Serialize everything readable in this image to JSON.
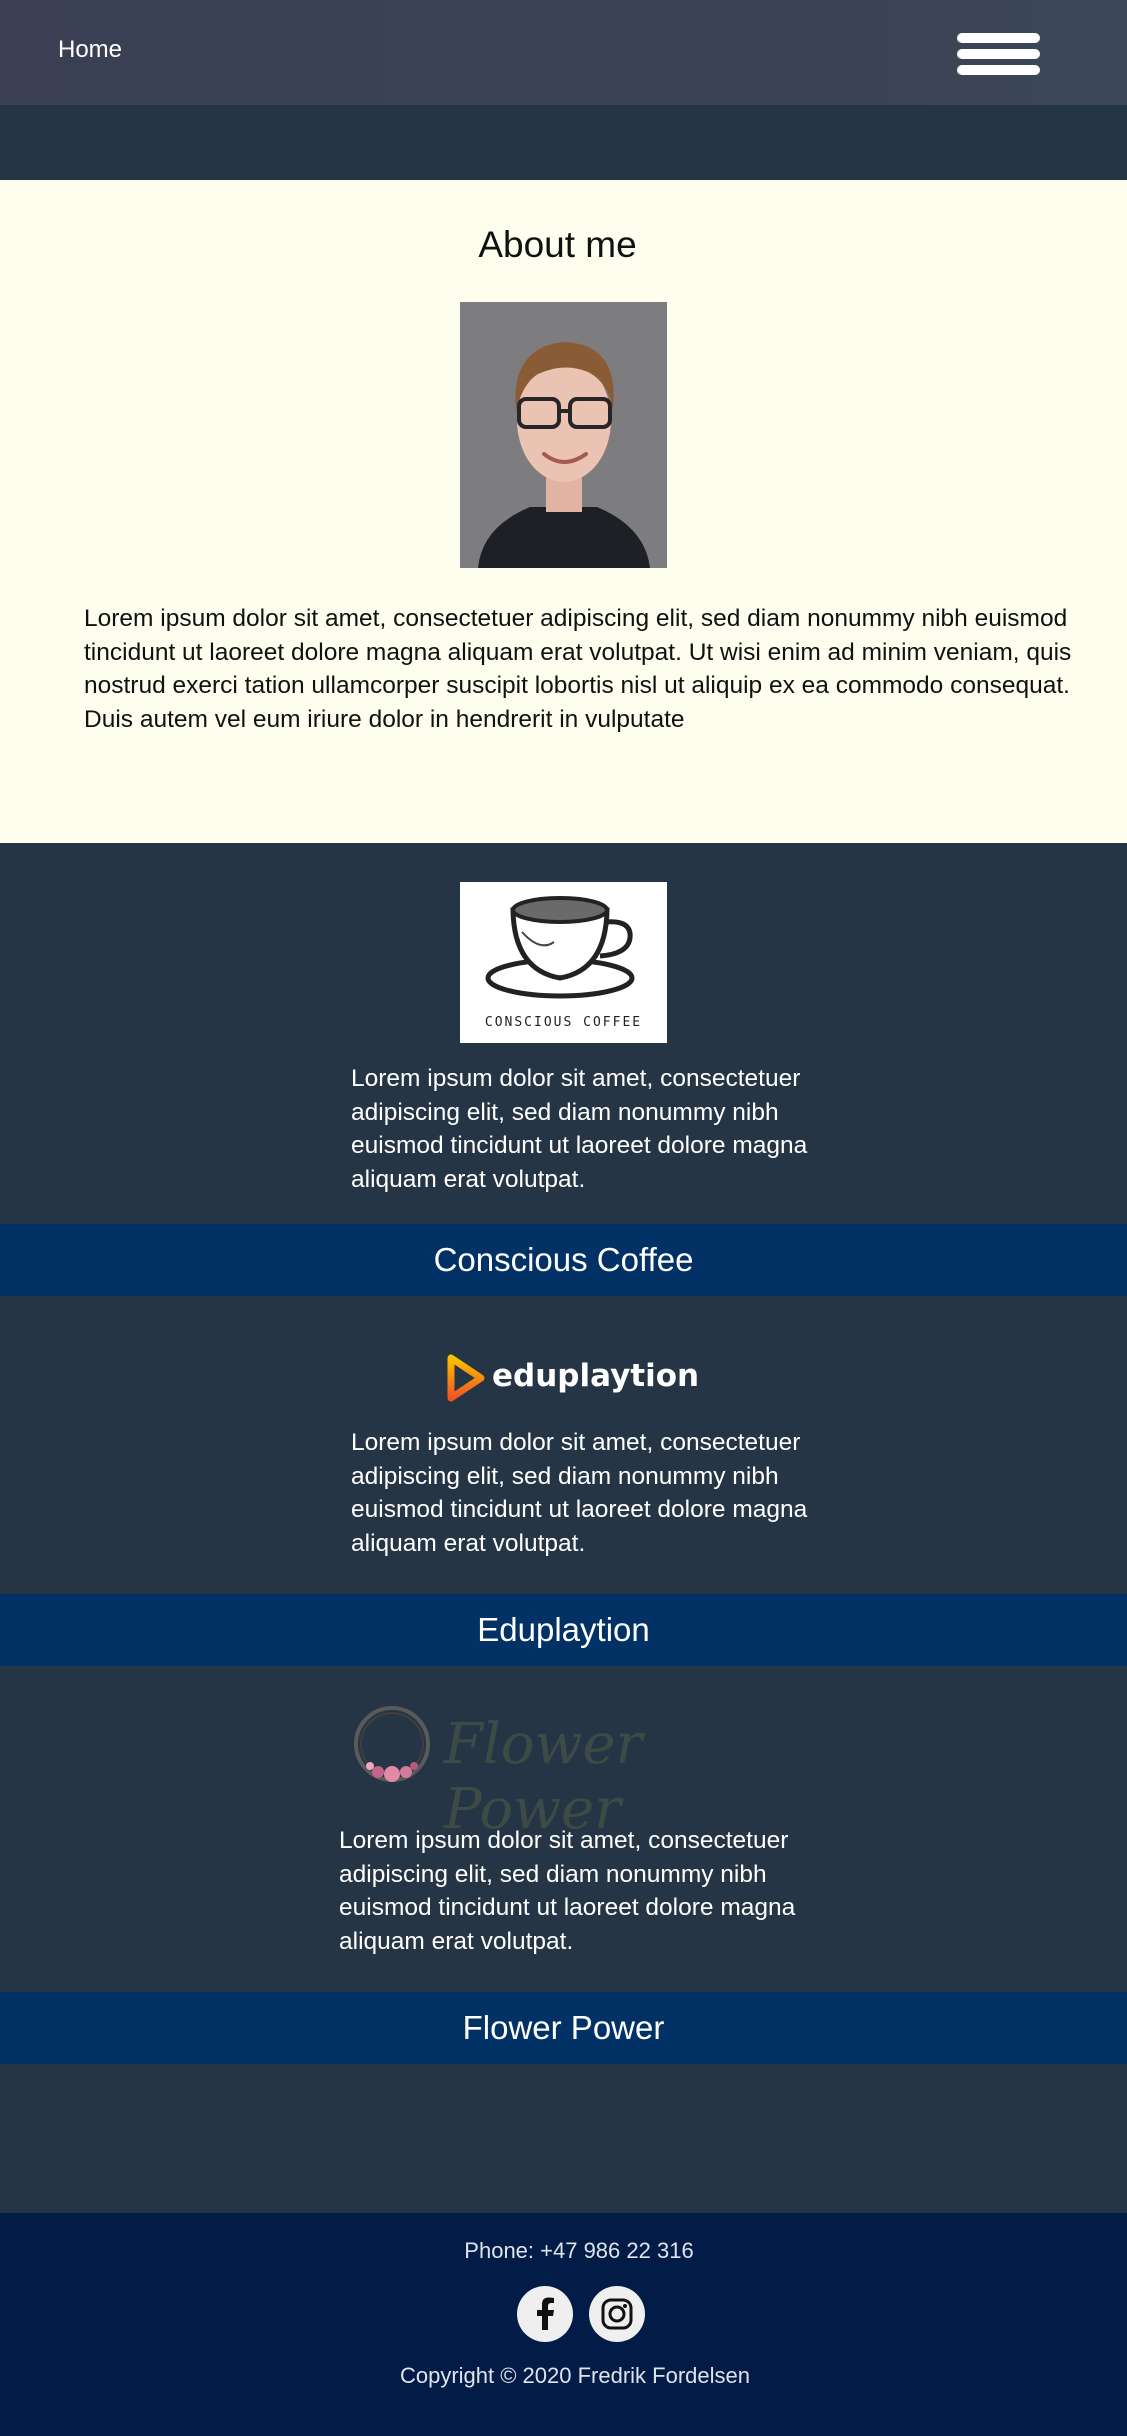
{
  "nav": {
    "home_label": "Home"
  },
  "about": {
    "title": "About me",
    "body": "Lorem ipsum dolor sit amet, consectetuer adipiscing elit, sed diam nonummy nibh euismod tincidunt ut laoreet dolore magna aliquam erat volutpat. Ut wisi enim ad minim veniam, quis nostrud exerci tation ullamcorper suscipit lobortis nisl ut aliquip ex ea commodo consequat. Duis autem vel eum iriure dolor in hendrerit in vulputate"
  },
  "projects": [
    {
      "name": "Conscious Coffee",
      "logo_text": "CONSCIOUS COFFEE",
      "description": "Lorem ipsum dolor sit amet, consectetuer adipiscing elit, sed diam nonummy nibh euismod tincidunt ut laoreet dolore magna aliquam erat volutpat."
    },
    {
      "name": "Eduplaytion",
      "logo_text": "eduplaytion",
      "description": "Lorem ipsum dolor sit amet, consectetuer adipiscing elit, sed diam nonummy nibh euismod tincidunt ut laoreet dolore magna aliquam erat volutpat."
    },
    {
      "name": "Flower Power",
      "logo_text": "Flower Power",
      "description": "Lorem ipsum dolor sit amet, consectetuer adipiscing elit, sed diam nonummy nibh euismod tincidunt ut laoreet dolore magna aliquam erat volutpat."
    }
  ],
  "footer": {
    "phone": "Phone: +47 986 22 316",
    "copyright": "Copyright © 2020 Fredrik Fordelsen",
    "social_icons": [
      "facebook-icon",
      "instagram-icon"
    ]
  },
  "colors": {
    "nav_bg": "#3a4154",
    "page_bg": "#263545",
    "about_bg": "#fefeef",
    "band_bg": "#023265",
    "footer_bg": "#021c47"
  }
}
